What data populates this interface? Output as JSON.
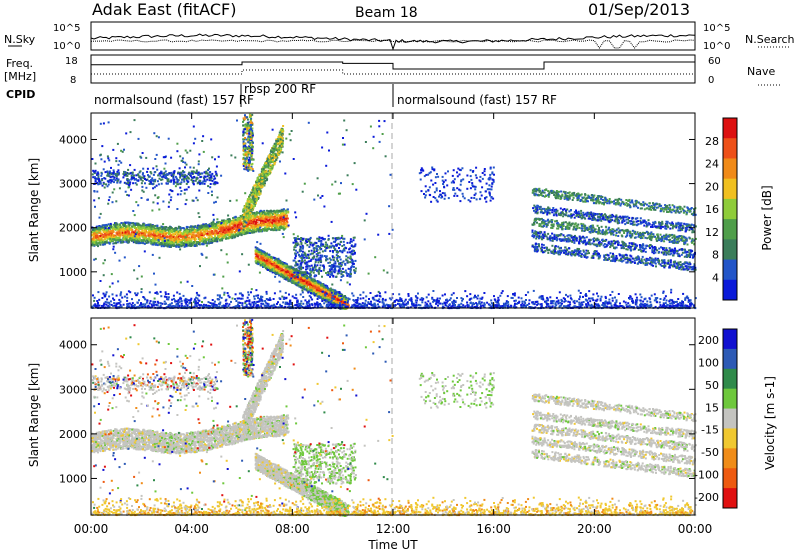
{
  "header": {
    "title": "Adak East (fitACF)",
    "beam": "Beam 18",
    "date": "01/Sep/2013"
  },
  "noise_panel": {
    "left_label": "N.Sky",
    "right_label": "N.Search",
    "left_ticks": [
      "10^5",
      "10^0"
    ],
    "right_ticks": [
      "10^5",
      "10^0"
    ]
  },
  "freq_panel": {
    "left_label_1": "Freq.",
    "left_label_2": "[MHz]",
    "right_label": "Nave",
    "left_ticks": [
      "18",
      "8"
    ],
    "right_ticks": [
      "60",
      "0"
    ],
    "cpid_label": "CPID",
    "programs": [
      {
        "name": "normalsound (fast) 157 RF",
        "start_hr": 0
      },
      {
        "name": "rbsp 200 RF",
        "start_hr": 6
      },
      {
        "name": "normalsound (fast) 157 RF",
        "start_hr": 12
      }
    ]
  },
  "colors": {
    "power": [
      "#0a1ad9",
      "#2255c8",
      "#3b7d5a",
      "#4f9e4a",
      "#8fcc3a",
      "#f0c020",
      "#f08a18",
      "#ee5018",
      "#dd1010"
    ],
    "velocity": [
      "#1010d0",
      "#2d5ab5",
      "#2f8a4a",
      "#6ec83c",
      "#c4c4c0",
      "#f0c830",
      "#f08c18",
      "#ee5a10",
      "#e01010"
    ]
  },
  "chart_data": [
    {
      "type": "heatmap",
      "name": "power",
      "x": [
        0,
        24
      ],
      "xticks": [
        "00:00",
        "04:00",
        "08:00",
        "12:00",
        "16:00",
        "20:00",
        "00:00"
      ],
      "xlabel": "Time UT",
      "ylabel": "Slant Range [km]",
      "ylim": [
        180,
        4600
      ],
      "yticks": [
        "1000",
        "2000",
        "3000",
        "4000"
      ],
      "colorbar_label": "Power [dB]",
      "colorbar_ticks": [
        "4",
        "8",
        "12",
        "16",
        "20",
        "24",
        "28"
      ],
      "colorbar_range": [
        0,
        32
      ],
      "features": [
        {
          "band": "main echo",
          "t_start": 0,
          "t_end": 7.8,
          "range_start": 1750,
          "range_end": 2200,
          "peak_db": 30
        },
        {
          "band": "descending echo",
          "t_start": 6.5,
          "t_end": 10.2,
          "range_start": 1400,
          "range_end": 250,
          "peak_db": 28
        },
        {
          "band": "far echoes",
          "t_start": 17.5,
          "t_end": 24,
          "range_start": 2300,
          "range_end": 1500,
          "peak_db": 12
        }
      ]
    },
    {
      "type": "heatmap",
      "name": "velocity",
      "x": [
        0,
        24
      ],
      "xticks": [
        "00:00",
        "04:00",
        "08:00",
        "12:00",
        "16:00",
        "20:00",
        "00:00"
      ],
      "xlabel": "Time UT",
      "ylabel": "Slant Range [km]",
      "ylim": [
        180,
        4600
      ],
      "yticks": [
        "1000",
        "2000",
        "3000",
        "4000"
      ],
      "colorbar_label": "Velocity [m s-1]",
      "colorbar_ticks": [
        "200",
        "100",
        "50",
        "15",
        "-15",
        "-50",
        "-100",
        "-200"
      ],
      "colorbar_range": [
        -250,
        250
      ]
    },
    {
      "type": "line",
      "name": "frequency",
      "x": [
        0,
        6,
        10,
        12,
        18,
        24
      ],
      "values": [
        14.5,
        15.5,
        15.0,
        13.0,
        15.5,
        15.5
      ],
      "ylim": [
        8,
        18
      ]
    }
  ]
}
